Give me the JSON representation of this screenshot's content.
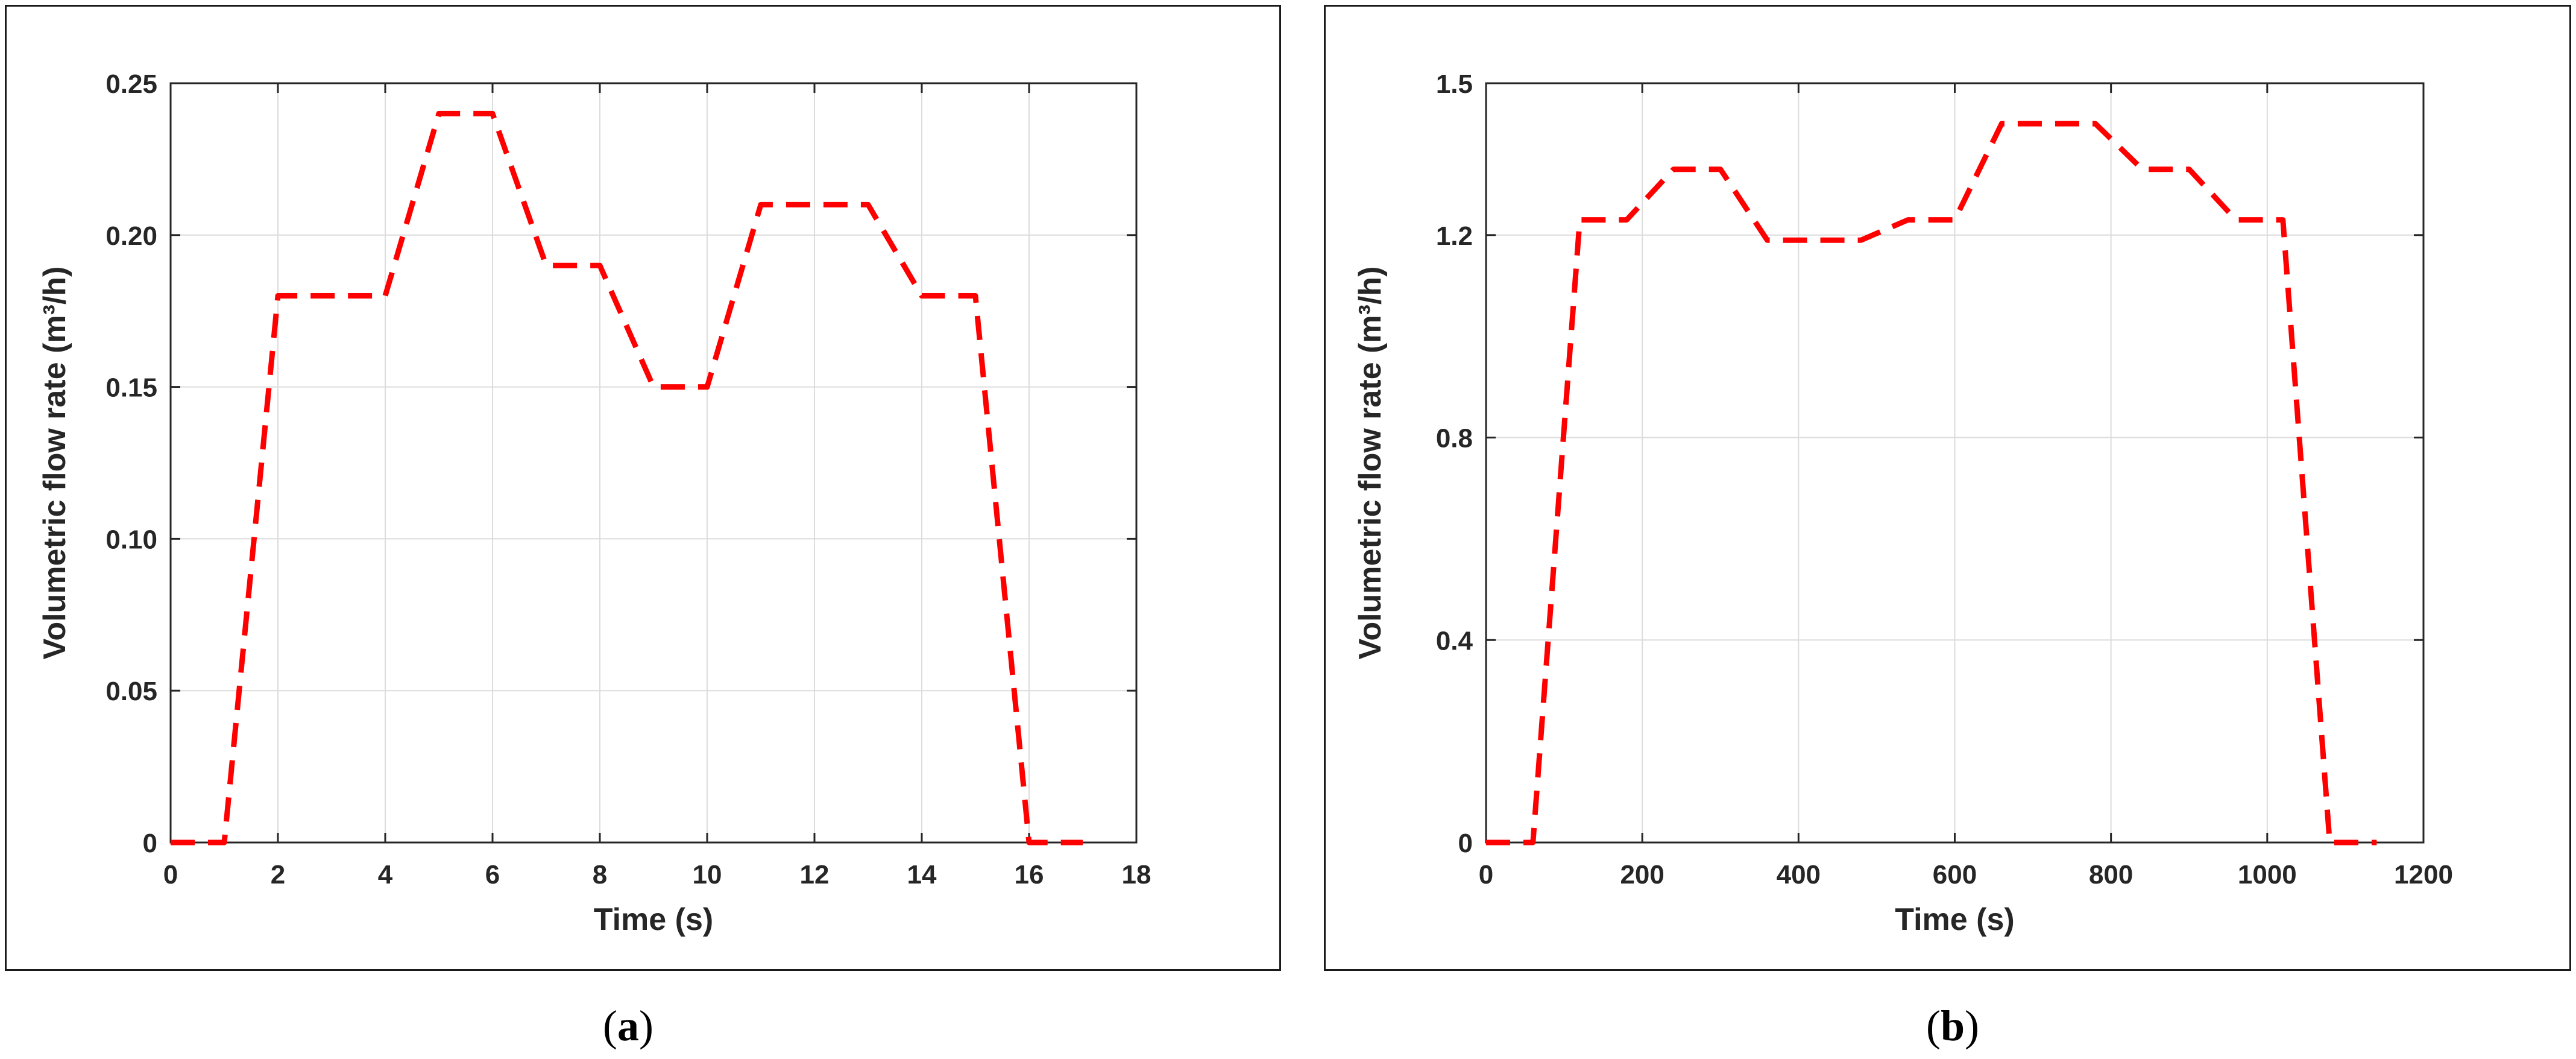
{
  "colors": {
    "series": "#ff0000",
    "axis": "#262626",
    "grid": "#dcdcdc",
    "frame": "#1a1a1a"
  },
  "chart_data": [
    {
      "type": "line",
      "panel_label": "a",
      "xlabel": "Time (s)",
      "ylabel": "Volumetric flow rate (m³/h)",
      "xlim": [
        0,
        18
      ],
      "ylim": [
        0,
        0.25
      ],
      "xticks": [
        0,
        2,
        4,
        6,
        8,
        10,
        12,
        14,
        16,
        18
      ],
      "xtick_labels": [
        "0",
        "2",
        "4",
        "6",
        "8",
        "10",
        "12",
        "14",
        "16",
        "18"
      ],
      "yticks": [
        0,
        0.05,
        0.1,
        0.15,
        0.2,
        0.25
      ],
      "ytick_labels": [
        "0",
        "0.05",
        "0.10",
        "0.15",
        "0.20",
        "0.25"
      ],
      "grid": true,
      "line_style": "dashed",
      "series": [
        {
          "x": [
            0,
            1,
            2,
            4,
            5,
            6,
            7,
            8,
            9,
            10,
            11,
            12,
            13,
            14,
            15,
            16,
            17
          ],
          "y": [
            0,
            0,
            0.18,
            0.18,
            0.24,
            0.24,
            0.19,
            0.19,
            0.15,
            0.15,
            0.21,
            0.21,
            0.21,
            0.18,
            0.18,
            0,
            0
          ]
        }
      ]
    },
    {
      "type": "line",
      "panel_label": "b",
      "xlabel": "Time (s)",
      "ylabel": "Volumetric flow rate (m³/h)",
      "xlim": [
        0,
        1200
      ],
      "ylim": [
        0,
        1.5
      ],
      "xticks": [
        0,
        200,
        400,
        600,
        800,
        1000,
        1200
      ],
      "xtick_labels": [
        "0",
        "200",
        "400",
        "600",
        "800",
        "1000",
        "1200"
      ],
      "yticks": [
        0,
        0.4,
        0.8,
        1.2,
        1.5
      ],
      "ytick_labels": [
        "0",
        "0.4",
        "0.8",
        "1.2",
        "1.5"
      ],
      "grid": true,
      "line_style": "dashed",
      "series": [
        {
          "x": [
            0,
            60,
            120,
            180,
            240,
            300,
            360,
            420,
            480,
            540,
            600,
            660,
            720,
            780,
            840,
            900,
            960,
            1020,
            1080,
            1140
          ],
          "y": [
            0,
            0,
            1.23,
            1.23,
            1.33,
            1.33,
            1.19,
            1.19,
            1.19,
            1.23,
            1.23,
            1.42,
            1.42,
            1.42,
            1.33,
            1.33,
            1.23,
            1.23,
            0,
            0
          ]
        }
      ]
    }
  ]
}
